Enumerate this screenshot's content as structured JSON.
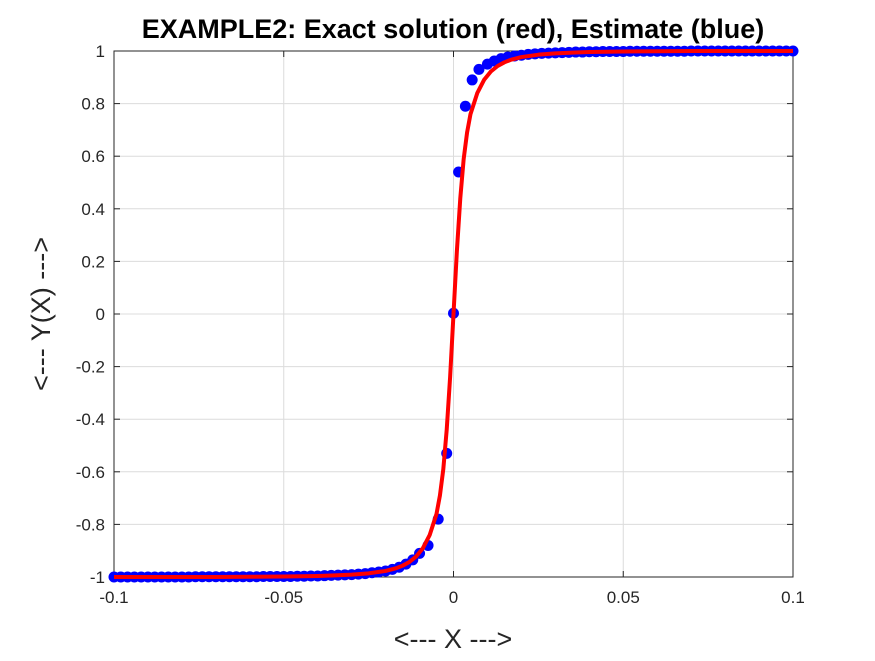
{
  "chart_data": {
    "type": "line",
    "title": "EXAMPLE2: Exact solution (red), Estimate (blue)",
    "xlabel": "<--- X --->",
    "ylabel": "<--- Y(X) --->",
    "xlim": [
      -0.1,
      0.1
    ],
    "ylim": [
      -1,
      1
    ],
    "grid": true,
    "x_ticks": [
      -0.1,
      -0.05,
      0,
      0.05,
      0.1
    ],
    "x_tick_labels": [
      "-0.1",
      "-0.05",
      "0",
      "0.05",
      "0.1"
    ],
    "y_ticks": [
      -1,
      -0.8,
      -0.6,
      -0.4,
      -0.2,
      0,
      0.2,
      0.4,
      0.6,
      0.8,
      1
    ],
    "y_tick_labels": [
      "-1",
      "-0.8",
      "-0.6",
      "-0.4",
      "-0.2",
      "0",
      "0.2",
      "0.4",
      "0.6",
      "0.8",
      "1"
    ],
    "series": [
      {
        "color": "#ff0000",
        "style": "line",
        "x": [
          -0.1,
          -0.09,
          -0.08,
          -0.07,
          -0.06,
          -0.05,
          -0.04,
          -0.035,
          -0.03,
          -0.025,
          -0.02,
          -0.017,
          -0.015,
          -0.013,
          -0.011,
          -0.009,
          -0.007,
          -0.005,
          -0.004,
          -0.003,
          -0.002,
          -0.001,
          0,
          0.001,
          0.002,
          0.003,
          0.004,
          0.005,
          0.007,
          0.009,
          0.011,
          0.013,
          0.015,
          0.017,
          0.02,
          0.025,
          0.03,
          0.035,
          0.04,
          0.05,
          0.06,
          0.07,
          0.08,
          0.09,
          0.1
        ],
        "y": [
          -1,
          -1,
          -1,
          -1,
          -0.999,
          -0.998,
          -0.996,
          -0.994,
          -0.991,
          -0.986,
          -0.977,
          -0.967,
          -0.957,
          -0.943,
          -0.922,
          -0.89,
          -0.84,
          -0.76,
          -0.69,
          -0.59,
          -0.44,
          -0.24,
          0,
          0.24,
          0.44,
          0.59,
          0.69,
          0.76,
          0.84,
          0.89,
          0.922,
          0.943,
          0.957,
          0.967,
          0.977,
          0.986,
          0.991,
          0.994,
          0.996,
          0.998,
          0.999,
          1,
          1,
          1,
          1
        ]
      },
      {
        "color": "#0000ff",
        "style": "markers",
        "x": [
          -0.1,
          -0.098,
          -0.096,
          -0.094,
          -0.092,
          -0.09,
          -0.088,
          -0.086,
          -0.084,
          -0.082,
          -0.08,
          -0.078,
          -0.076,
          -0.074,
          -0.072,
          -0.07,
          -0.068,
          -0.066,
          -0.064,
          -0.062,
          -0.06,
          -0.058,
          -0.056,
          -0.054,
          -0.052,
          -0.05,
          -0.048,
          -0.046,
          -0.044,
          -0.042,
          -0.04,
          -0.038,
          -0.036,
          -0.034,
          -0.032,
          -0.03,
          -0.028,
          -0.026,
          -0.024,
          -0.022,
          -0.02,
          -0.018,
          -0.016,
          -0.014,
          -0.012,
          -0.01,
          -0.0075,
          -0.0045,
          -0.002,
          0,
          0.0015,
          0.0035,
          0.0055,
          0.0075,
          0.01,
          0.012,
          0.014,
          0.016,
          0.018,
          0.02,
          0.022,
          0.024,
          0.026,
          0.028,
          0.03,
          0.032,
          0.034,
          0.036,
          0.038,
          0.04,
          0.042,
          0.044,
          0.046,
          0.048,
          0.05,
          0.052,
          0.054,
          0.056,
          0.058,
          0.06,
          0.062,
          0.064,
          0.066,
          0.068,
          0.07,
          0.072,
          0.074,
          0.076,
          0.078,
          0.08,
          0.082,
          0.084,
          0.086,
          0.088,
          0.09,
          0.092,
          0.094,
          0.096,
          0.098,
          0.1
        ],
        "y": [
          -1,
          -1,
          -1,
          -1,
          -1,
          -1,
          -1,
          -1,
          -1,
          -1,
          -1,
          -1,
          -0.999,
          -0.999,
          -0.999,
          -0.999,
          -0.999,
          -0.999,
          -0.999,
          -0.999,
          -0.999,
          -0.999,
          -0.998,
          -0.998,
          -0.998,
          -0.998,
          -0.998,
          -0.997,
          -0.997,
          -0.996,
          -0.996,
          -0.995,
          -0.994,
          -0.993,
          -0.992,
          -0.991,
          -0.989,
          -0.987,
          -0.984,
          -0.981,
          -0.977,
          -0.971,
          -0.963,
          -0.951,
          -0.935,
          -0.91,
          -0.88,
          -0.78,
          -0.53,
          0.003,
          0.54,
          0.79,
          0.89,
          0.93,
          0.95,
          0.962,
          0.971,
          0.977,
          0.981,
          0.984,
          0.987,
          0.989,
          0.991,
          0.992,
          0.993,
          0.994,
          0.995,
          0.996,
          0.996,
          0.997,
          0.997,
          0.998,
          0.998,
          0.998,
          0.998,
          0.999,
          0.999,
          0.999,
          0.999,
          0.999,
          0.999,
          0.999,
          0.999,
          0.999,
          1,
          1,
          1,
          1,
          1,
          1,
          1,
          1,
          1,
          1,
          1,
          1,
          1,
          1,
          1,
          1
        ]
      }
    ]
  }
}
